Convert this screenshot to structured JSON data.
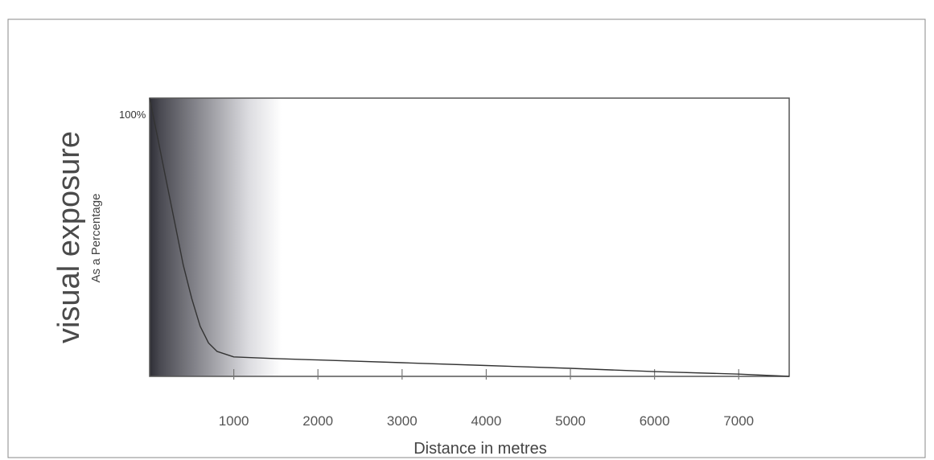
{
  "chart_data": {
    "type": "line",
    "title": "",
    "ylabel": "visual exposure",
    "ylabel_sub": "As a Percentage",
    "xlabel": "Distance in metres",
    "y_tick_labels": [
      "100%"
    ],
    "x_tick_labels": [
      "1000",
      "2000",
      "3000",
      "4000",
      "5000",
      "6000",
      "7000"
    ],
    "x_ticks": [
      1000,
      2000,
      3000,
      4000,
      5000,
      6000,
      7000
    ],
    "xlim": [
      0,
      7600
    ],
    "ylim": [
      0,
      100
    ],
    "grid": false,
    "legend": "none",
    "series": [
      {
        "x": [
          0,
          100,
          200,
          300,
          400,
          500,
          600,
          700,
          800,
          1000,
          1500,
          2000,
          3000,
          4000,
          5000,
          6000,
          7000,
          7600
        ],
        "values": [
          100,
          85,
          70,
          55,
          40,
          28,
          18,
          12,
          9,
          7,
          6.4,
          5.9,
          4.9,
          3.9,
          2.9,
          1.7,
          0.8,
          0
        ]
      }
    ],
    "colors": {
      "line": "#333333",
      "frame": "#555555",
      "gradient_dark": "#2f2f36",
      "gradient_light": "#ffffff"
    }
  }
}
